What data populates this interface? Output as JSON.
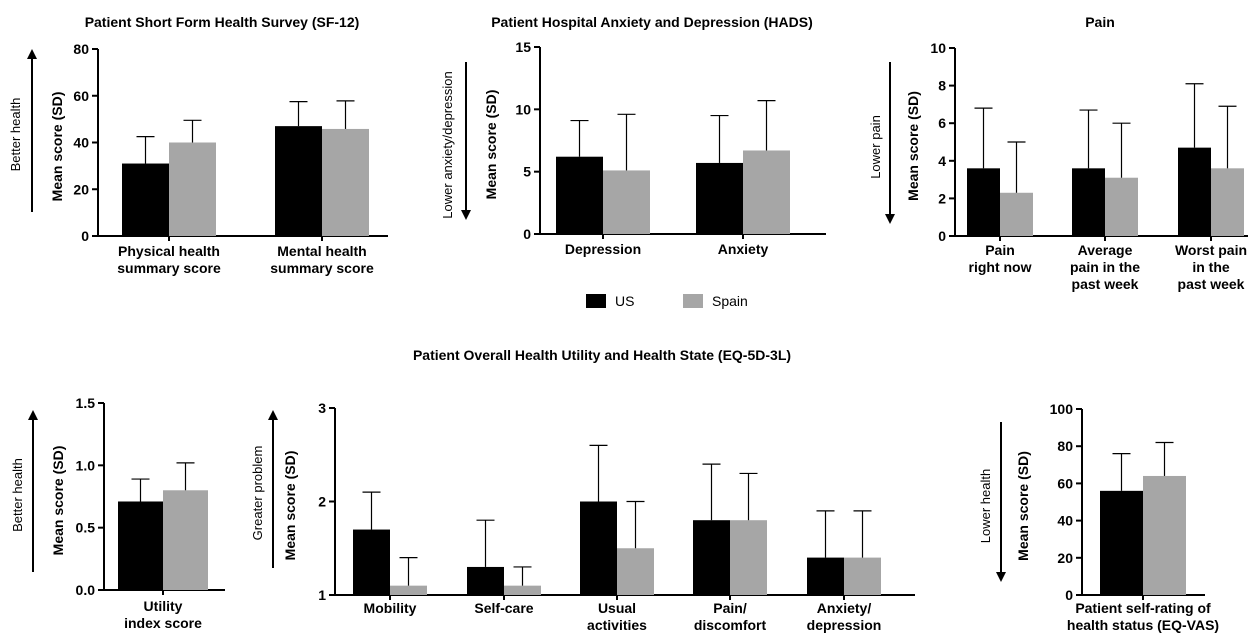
{
  "colors": {
    "us": "#000000",
    "spain": "#a6a6a6"
  },
  "legend": {
    "items": [
      {
        "label": "US",
        "color": "#000000"
      },
      {
        "label": "Spain",
        "color": "#a6a6a6"
      }
    ]
  },
  "section_title": "Patient Overall Health Utility and Health State (EQ-5D-3L)",
  "chart_data": [
    {
      "id": "sf12",
      "type": "bar",
      "title": "Patient Short Form Health Survey (SF-12)",
      "ylabel": "Mean score (SD)",
      "direction_label": "Better health",
      "direction": "up",
      "ylim": [
        0,
        80
      ],
      "yticks": [
        0,
        20,
        40,
        60,
        80
      ],
      "categories": [
        [
          "Physical health",
          "summary score"
        ],
        [
          "Mental health",
          "summary score"
        ]
      ],
      "series": [
        {
          "name": "US",
          "values": [
            31.0,
            47.0
          ],
          "sd": [
            11.5,
            10.5
          ]
        },
        {
          "name": "Spain",
          "values": [
            40.0,
            45.8
          ],
          "sd": [
            9.5,
            12.0
          ]
        }
      ]
    },
    {
      "id": "hads",
      "type": "bar",
      "title": "Patient Hospital Anxiety and Depression (HADS)",
      "ylabel": "Mean score (SD)",
      "direction_label": "Lower anxiety/depression",
      "direction": "down",
      "ylim": [
        0,
        15
      ],
      "yticks": [
        0,
        5,
        10,
        15
      ],
      "categories": [
        [
          "Depression"
        ],
        [
          "Anxiety"
        ]
      ],
      "series": [
        {
          "name": "US",
          "values": [
            6.2,
            5.7
          ],
          "sd": [
            2.9,
            3.8
          ]
        },
        {
          "name": "Spain",
          "values": [
            5.1,
            6.7
          ],
          "sd": [
            4.5,
            4.0
          ]
        }
      ]
    },
    {
      "id": "pain",
      "type": "bar",
      "title": "Pain",
      "ylabel": "Mean score (SD)",
      "direction_label": "Lower pain",
      "direction": "down",
      "ylim": [
        0,
        10
      ],
      "yticks": [
        0,
        2,
        4,
        6,
        8,
        10
      ],
      "categories": [
        [
          "Pain",
          "right now"
        ],
        [
          "Average",
          "pain in the",
          "past week"
        ],
        [
          "Worst pain",
          "in the",
          "past week"
        ]
      ],
      "series": [
        {
          "name": "US",
          "values": [
            3.6,
            3.6,
            4.7
          ],
          "sd": [
            3.2,
            3.1,
            3.4
          ]
        },
        {
          "name": "Spain",
          "values": [
            2.3,
            3.1,
            3.6
          ],
          "sd": [
            2.7,
            2.9,
            3.3
          ]
        }
      ]
    },
    {
      "id": "utility",
      "type": "bar",
      "title": "",
      "ylabel": "Mean score (SD)",
      "direction_label": "Better health",
      "direction": "up",
      "ylim": [
        0,
        1.5
      ],
      "yticks": [
        0.0,
        0.5,
        1.0,
        1.5
      ],
      "ytick_labels": [
        "0.0",
        "0.5",
        "1.0",
        "1.5"
      ],
      "categories": [
        [
          "Utility",
          "index score"
        ]
      ],
      "series": [
        {
          "name": "US",
          "values": [
            0.71
          ],
          "sd": [
            0.18
          ]
        },
        {
          "name": "Spain",
          "values": [
            0.8
          ],
          "sd": [
            0.22
          ]
        }
      ]
    },
    {
      "id": "dims",
      "type": "bar",
      "title": "",
      "ylabel": "Mean score (SD)",
      "direction_label": "Greater problem",
      "direction": "up",
      "ylim": [
        1,
        3
      ],
      "yticks": [
        1,
        2,
        3
      ],
      "categories": [
        [
          "Mobility"
        ],
        [
          "Self-care"
        ],
        [
          "Usual",
          "activities"
        ],
        [
          "Pain/",
          "discomfort"
        ],
        [
          "Anxiety/",
          "depression"
        ]
      ],
      "series": [
        {
          "name": "US",
          "values": [
            1.7,
            1.3,
            2.0,
            1.8,
            1.4
          ],
          "sd": [
            0.4,
            0.5,
            0.6,
            0.6,
            0.5
          ]
        },
        {
          "name": "Spain",
          "values": [
            1.1,
            1.1,
            1.5,
            1.8,
            1.4
          ],
          "sd": [
            0.3,
            0.2,
            0.5,
            0.5,
            0.5
          ]
        }
      ]
    },
    {
      "id": "vas",
      "type": "bar",
      "title": "",
      "ylabel": "Mean score (SD)",
      "direction_label": "Lower health",
      "direction": "down",
      "ylim": [
        0,
        100
      ],
      "yticks": [
        0,
        20,
        40,
        60,
        80,
        100
      ],
      "categories": [
        [
          "Patient self-rating of",
          "health status (EQ-VAS)"
        ]
      ],
      "series": [
        {
          "name": "US",
          "values": [
            56.0
          ],
          "sd": [
            20.0
          ]
        },
        {
          "name": "Spain",
          "values": [
            64.0
          ],
          "sd": [
            18.0
          ]
        }
      ]
    }
  ]
}
